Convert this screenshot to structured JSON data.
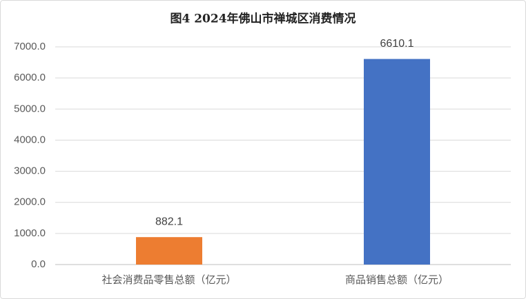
{
  "chart_data": {
    "type": "bar",
    "title": "图4  2024年佛山市禅城区消费情况",
    "categories": [
      "社会消费品零售总额（亿元）",
      "商品销售总额（亿元）"
    ],
    "values": [
      882.1,
      6610.1
    ],
    "colors": [
      "#ed7d31",
      "#4472c4"
    ],
    "ylim": [
      0,
      7000
    ],
    "yticks": [
      {
        "value": 0,
        "label": "0.0"
      },
      {
        "value": 1000,
        "label": "1000.0"
      },
      {
        "value": 2000,
        "label": "2000.0"
      },
      {
        "value": 3000,
        "label": "3000.0"
      },
      {
        "value": 4000,
        "label": "4000.0"
      },
      {
        "value": 5000,
        "label": "5000.0"
      },
      {
        "value": 6000,
        "label": "6000.0"
      },
      {
        "value": 7000,
        "label": "7000.0"
      }
    ],
    "grid": true
  }
}
